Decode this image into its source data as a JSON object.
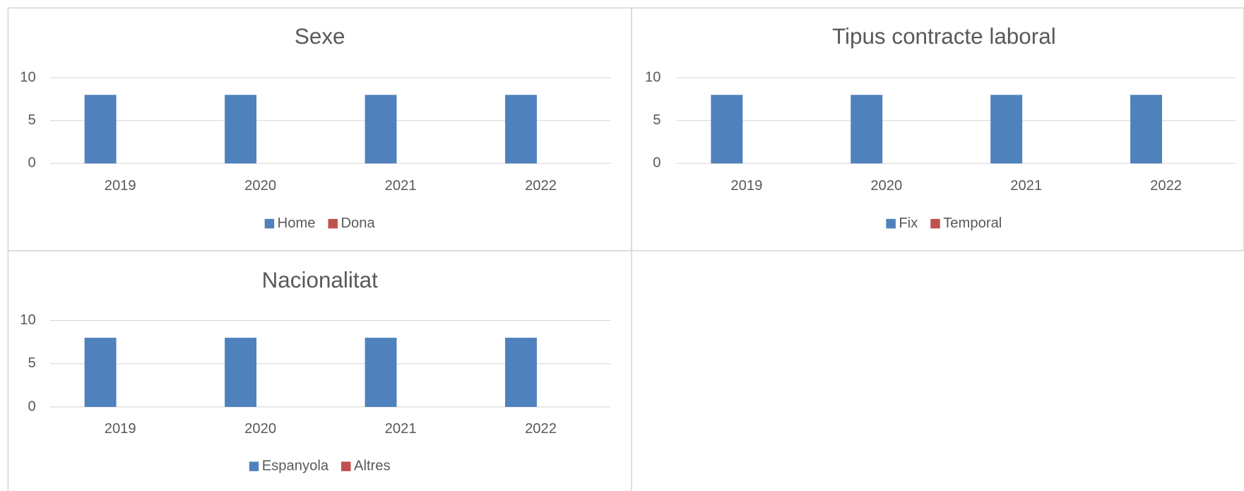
{
  "chart_data": [
    {
      "type": "bar",
      "title": "Sexe",
      "categories": [
        "2019",
        "2020",
        "2021",
        "2022"
      ],
      "series": [
        {
          "name": "Home",
          "color": "#4f81bd",
          "values": [
            8,
            8,
            8,
            8
          ]
        },
        {
          "name": "Dona",
          "color": "#c0504d",
          "values": [
            0,
            0,
            0,
            0
          ]
        }
      ],
      "ylim": [
        0,
        10
      ],
      "yticks": [
        0,
        5,
        10
      ],
      "grid": true,
      "legend": "bottom"
    },
    {
      "type": "bar",
      "title": "Tipus contracte laboral",
      "categories": [
        "2019",
        "2020",
        "2021",
        "2022"
      ],
      "series": [
        {
          "name": "Fix",
          "color": "#4f81bd",
          "values": [
            8,
            8,
            8,
            8
          ]
        },
        {
          "name": "Temporal",
          "color": "#c0504d",
          "values": [
            0,
            0,
            0,
            0
          ]
        }
      ],
      "ylim": [
        0,
        10
      ],
      "yticks": [
        0,
        5,
        10
      ],
      "grid": true,
      "legend": "bottom"
    },
    {
      "type": "bar",
      "title": "Nacionalitat",
      "categories": [
        "2019",
        "2020",
        "2021",
        "2022"
      ],
      "series": [
        {
          "name": "Espanyola",
          "color": "#4f81bd",
          "values": [
            8,
            8,
            8,
            8
          ]
        },
        {
          "name": "Altres",
          "color": "#c0504d",
          "values": [
            0,
            0,
            0,
            0
          ]
        }
      ],
      "ylim": [
        0,
        10
      ],
      "yticks": [
        0,
        5,
        10
      ],
      "grid": true,
      "legend": "bottom"
    }
  ]
}
